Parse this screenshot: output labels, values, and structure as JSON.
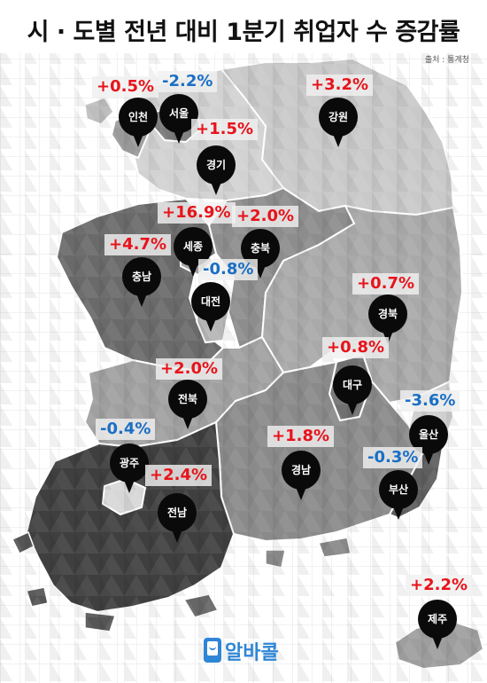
{
  "title": "시 · 도별 전년 대비 1분기 취업자 수 증감률",
  "source": "출처 : 통계청",
  "colors": {
    "positive": "#e8131b",
    "negative": "#1a6fc4",
    "pin": "#0a0a0a",
    "logo": "#2f86d6"
  },
  "regions": [
    {
      "id": "incheon",
      "name": "인천",
      "change": "+0.5%",
      "sign": "pos"
    },
    {
      "id": "seoul",
      "name": "서울",
      "change": "-2.2%",
      "sign": "neg"
    },
    {
      "id": "gangwon",
      "name": "강원",
      "change": "+3.2%",
      "sign": "pos"
    },
    {
      "id": "gyeonggi",
      "name": "경기",
      "change": "+1.5%",
      "sign": "pos"
    },
    {
      "id": "sejong",
      "name": "세종",
      "change": "+16.9%",
      "sign": "pos"
    },
    {
      "id": "chungbuk",
      "name": "충북",
      "change": "+2.0%",
      "sign": "pos"
    },
    {
      "id": "chungnam",
      "name": "충남",
      "change": "+4.7%",
      "sign": "pos"
    },
    {
      "id": "daejeon",
      "name": "대전",
      "change": "-0.8%",
      "sign": "neg"
    },
    {
      "id": "gyeongbuk",
      "name": "경북",
      "change": "+0.7%",
      "sign": "pos"
    },
    {
      "id": "daegu",
      "name": "대구",
      "change": "+0.8%",
      "sign": "pos"
    },
    {
      "id": "jeonbuk",
      "name": "전북",
      "change": "+2.0%",
      "sign": "pos"
    },
    {
      "id": "ulsan",
      "name": "울산",
      "change": "-3.6%",
      "sign": "neg"
    },
    {
      "id": "gwangju",
      "name": "광주",
      "change": "-0.4%",
      "sign": "neg"
    },
    {
      "id": "gyeongnam",
      "name": "경남",
      "change": "+1.8%",
      "sign": "pos"
    },
    {
      "id": "busan",
      "name": "부산",
      "change": "-0.3%",
      "sign": "neg"
    },
    {
      "id": "jeonnam",
      "name": "전남",
      "change": "+2.4%",
      "sign": "pos"
    },
    {
      "id": "jeju",
      "name": "제주",
      "change": "+2.2%",
      "sign": "pos"
    }
  ],
  "logo": {
    "text": "알바콜",
    "icon": "phone-smile-icon"
  }
}
